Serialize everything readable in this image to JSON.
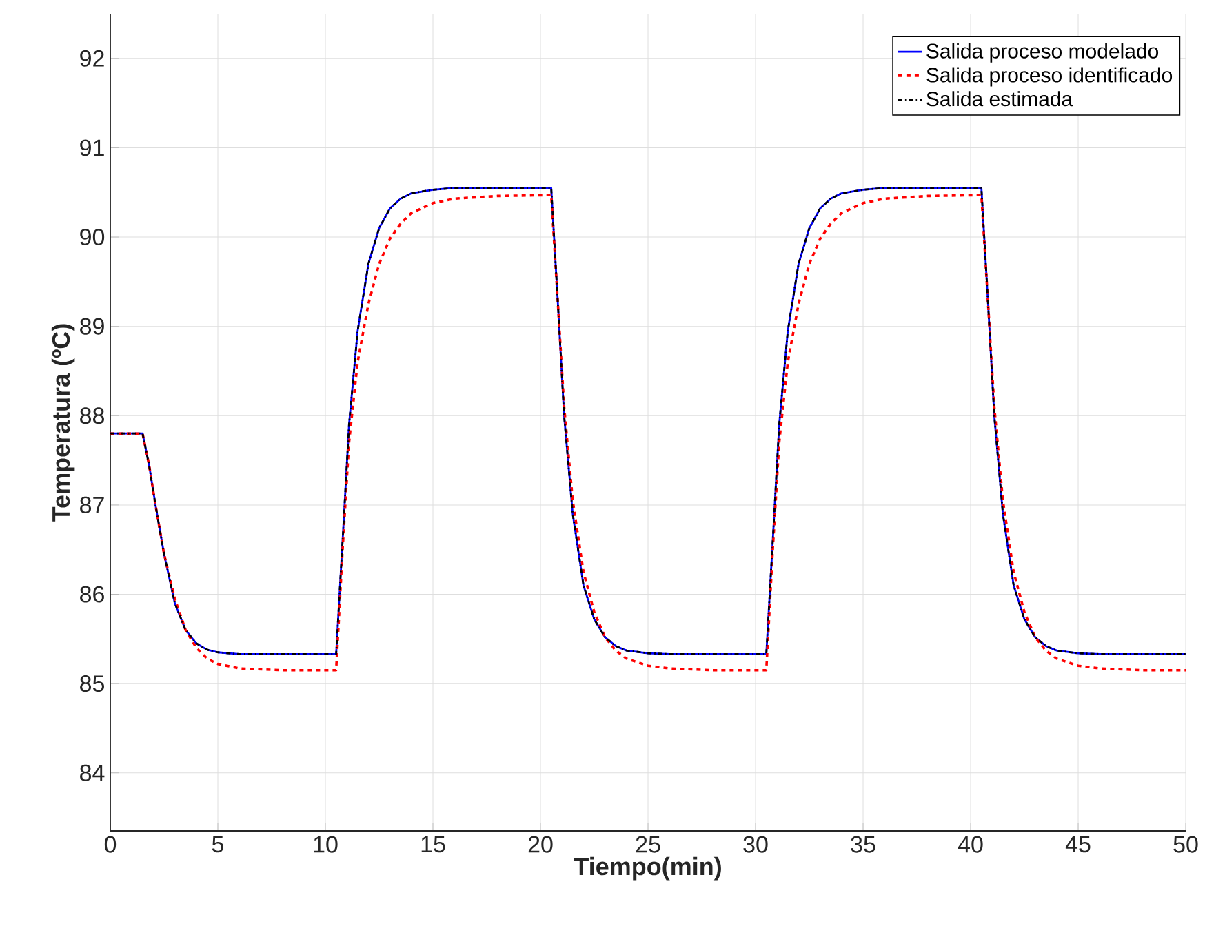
{
  "chart_data": {
    "type": "line",
    "xlabel": "Tiempo(min)",
    "ylabel": "Temperatura (ºC)",
    "xlim": [
      0,
      50
    ],
    "ylim": [
      83.35,
      92.5
    ],
    "xticks": [
      0,
      5,
      10,
      15,
      20,
      25,
      30,
      35,
      40,
      45,
      50
    ],
    "yticks": [
      84,
      85,
      86,
      87,
      88,
      89,
      90,
      91,
      92
    ],
    "grid": true,
    "legend": "top right",
    "x": [
      0,
      1.5,
      1.8,
      2.1,
      2.5,
      3,
      3.5,
      4,
      4.5,
      5,
      6,
      8,
      10.5,
      10.8,
      11.1,
      11.5,
      12,
      12.5,
      13,
      13.5,
      14,
      15,
      16,
      18,
      20.5,
      20.8,
      21.1,
      21.5,
      22,
      22.5,
      23,
      23.5,
      24,
      25,
      26,
      28,
      30.5,
      30.8,
      31.1,
      31.5,
      32,
      32.5,
      33,
      33.5,
      34,
      35,
      36,
      38,
      40.5,
      40.8,
      41.1,
      41.5,
      42,
      42.5,
      43,
      43.5,
      44,
      45,
      46,
      48,
      50
    ],
    "series": [
      {
        "name": "Salida proceso modelado",
        "color": "#0000ff",
        "line_style": "solid",
        "values": [
          87.8,
          87.8,
          87.45,
          87.0,
          86.45,
          85.9,
          85.6,
          85.45,
          85.38,
          85.35,
          85.33,
          85.33,
          85.33,
          86.6,
          87.9,
          88.95,
          89.7,
          90.1,
          90.32,
          90.43,
          90.49,
          90.53,
          90.55,
          90.55,
          90.55,
          89.3,
          88.0,
          86.9,
          86.1,
          85.72,
          85.52,
          85.42,
          85.37,
          85.34,
          85.33,
          85.33,
          85.33,
          86.6,
          87.9,
          88.95,
          89.7,
          90.1,
          90.32,
          90.43,
          90.49,
          90.53,
          90.55,
          90.55,
          90.55,
          89.3,
          88.0,
          86.9,
          86.1,
          85.72,
          85.52,
          85.42,
          85.37,
          85.34,
          85.33,
          85.33,
          85.33
        ]
      },
      {
        "name": "Salida proceso identificado",
        "color": "#ff0000",
        "line_style": "dashed",
        "values": [
          87.8,
          87.8,
          87.45,
          87.0,
          86.45,
          85.95,
          85.6,
          85.4,
          85.28,
          85.22,
          85.17,
          85.15,
          85.15,
          86.5,
          87.7,
          88.6,
          89.25,
          89.7,
          89.98,
          90.15,
          90.27,
          90.38,
          90.43,
          90.46,
          90.47,
          89.3,
          88.1,
          87.05,
          86.25,
          85.8,
          85.52,
          85.37,
          85.28,
          85.2,
          85.17,
          85.15,
          85.15,
          86.5,
          87.7,
          88.6,
          89.25,
          89.7,
          89.98,
          90.15,
          90.27,
          90.38,
          90.43,
          90.46,
          90.47,
          89.3,
          88.1,
          87.05,
          86.25,
          85.8,
          85.52,
          85.37,
          85.28,
          85.2,
          85.17,
          85.15,
          85.15
        ]
      },
      {
        "name": "Salida estimada",
        "color": "#000000",
        "line_style": "dashdot",
        "values": [
          87.8,
          87.8,
          87.45,
          87.0,
          86.45,
          85.9,
          85.6,
          85.45,
          85.38,
          85.35,
          85.33,
          85.33,
          85.33,
          86.6,
          87.9,
          88.95,
          89.7,
          90.1,
          90.32,
          90.43,
          90.49,
          90.53,
          90.55,
          90.55,
          90.55,
          89.3,
          88.0,
          86.9,
          86.1,
          85.72,
          85.52,
          85.42,
          85.37,
          85.34,
          85.33,
          85.33,
          85.33,
          86.6,
          87.9,
          88.95,
          89.7,
          90.1,
          90.32,
          90.43,
          90.49,
          90.53,
          90.55,
          90.55,
          90.55,
          89.3,
          88.0,
          86.9,
          86.1,
          85.72,
          85.52,
          85.42,
          85.37,
          85.34,
          85.33,
          85.33,
          85.33
        ]
      }
    ]
  }
}
